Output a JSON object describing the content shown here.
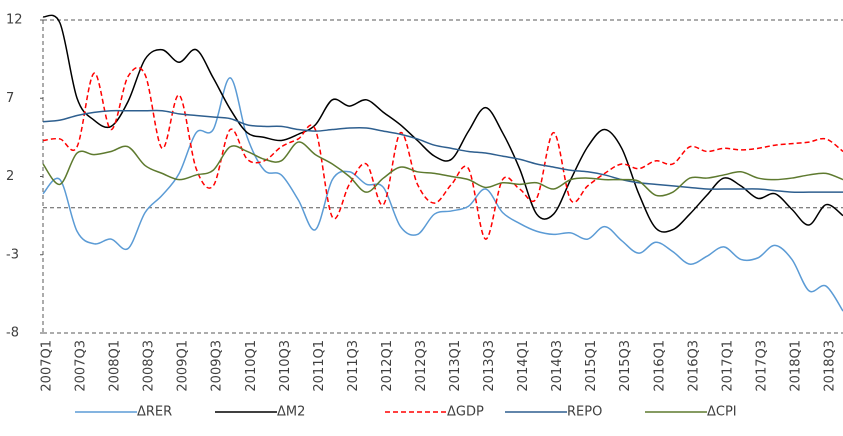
{
  "chart_data": {
    "type": "line",
    "categories": [
      "2007Q1",
      null,
      "2007Q3",
      null,
      "2008Q1",
      null,
      "2008Q3",
      null,
      "2009Q1",
      null,
      "2009Q3",
      null,
      "2010Q1",
      null,
      "2010Q3",
      null,
      "2011Q1",
      null,
      "2011Q3",
      null,
      "2012Q1",
      null,
      "2012Q3",
      null,
      "2013Q1",
      null,
      "2013Q3",
      null,
      "2014Q1",
      null,
      "2014Q3",
      null,
      "2015Q1",
      null,
      "2015Q3",
      null,
      "2016Q1",
      null,
      "2016Q3",
      null,
      "2017Q1",
      null,
      "2017Q3",
      null,
      "2018Q1",
      null,
      "2018Q3",
      null
    ],
    "ylim": [
      -8,
      12
    ],
    "yticks": [
      12,
      7,
      2,
      -3,
      -8
    ],
    "zero_line": true,
    "series": [
      {
        "name": "ΔRER",
        "color": "#5b9bd5",
        "dashed": false,
        "values": [
          0.9,
          1.8,
          -1.5,
          -2.3,
          -2.0,
          -2.6,
          -0.3,
          0.8,
          2.2,
          4.8,
          5.0,
          8.3,
          4.5,
          2.4,
          2.1,
          0.5,
          -1.4,
          1.8,
          2.3,
          1.5,
          1.3,
          -1.2,
          -1.7,
          -0.4,
          -0.2,
          0.1,
          1.2,
          -0.3,
          -1.0,
          -1.5,
          -1.7,
          -1.6,
          -2.0,
          -1.2,
          -2.1,
          -2.9,
          -2.2,
          -2.8,
          -3.6,
          -3.1,
          -2.5,
          -3.3,
          -3.2,
          -2.4,
          -3.3,
          -5.3,
          -5.0,
          -6.6
        ]
      },
      {
        "name": "ΔM2",
        "color": "#000000",
        "dashed": false,
        "values": [
          12.2,
          11.8,
          7.0,
          5.6,
          5.2,
          6.8,
          9.5,
          10.1,
          9.3,
          10.1,
          8.3,
          6.3,
          4.8,
          4.5,
          4.3,
          4.7,
          5.3,
          6.9,
          6.5,
          6.9,
          6.1,
          5.3,
          4.3,
          3.3,
          3.1,
          4.9,
          6.4,
          4.8,
          2.5,
          -0.4,
          -0.4,
          1.8,
          3.9,
          5.0,
          3.8,
          0.9,
          -1.3,
          -1.4,
          -0.4,
          0.8,
          1.9,
          1.4,
          0.6,
          0.9,
          -0.1,
          -1.1,
          0.2,
          -0.5
        ]
      },
      {
        "name": "ΔGDP",
        "color": "#ff0000",
        "dashed": true,
        "values": [
          4.3,
          4.4,
          3.9,
          8.6,
          5.0,
          8.4,
          8.5,
          3.8,
          7.2,
          2.5,
          1.4,
          5.0,
          3.1,
          3.0,
          3.9,
          4.4,
          5.0,
          -0.6,
          1.5,
          2.8,
          0.2,
          4.8,
          1.5,
          0.3,
          1.5,
          2.5,
          -2.0,
          1.8,
          1.2,
          0.6,
          4.8,
          0.5,
          1.4,
          2.2,
          2.8,
          2.5,
          3.0,
          2.8,
          3.9,
          3.6,
          3.8,
          3.7,
          3.8,
          4.0,
          4.1,
          4.2,
          4.4,
          3.6
        ]
      },
      {
        "name": "REPO",
        "color": "#2e5f8f",
        "dashed": false,
        "values": [
          5.5,
          5.6,
          5.9,
          6.1,
          6.2,
          6.2,
          6.2,
          6.2,
          6.0,
          5.9,
          5.8,
          5.7,
          5.3,
          5.2,
          5.2,
          5.0,
          4.9,
          5.0,
          5.1,
          5.1,
          4.9,
          4.7,
          4.4,
          4.0,
          3.8,
          3.6,
          3.5,
          3.3,
          3.1,
          2.8,
          2.6,
          2.4,
          2.3,
          2.1,
          1.8,
          1.6,
          1.5,
          1.4,
          1.3,
          1.2,
          1.2,
          1.2,
          1.2,
          1.1,
          1.0,
          1.0,
          1.0,
          1.0
        ]
      },
      {
        "name": "ΔCPI",
        "color": "#5e7a2f",
        "dashed": false,
        "values": [
          2.8,
          1.5,
          3.5,
          3.4,
          3.6,
          3.9,
          2.7,
          2.2,
          1.8,
          2.1,
          2.4,
          3.9,
          3.6,
          3.1,
          3.0,
          4.2,
          3.4,
          2.8,
          2.0,
          1.0,
          1.9,
          2.6,
          2.3,
          2.2,
          2.0,
          1.8,
          1.3,
          1.6,
          1.5,
          1.6,
          1.2,
          1.8,
          1.9,
          1.8,
          1.8,
          1.7,
          0.8,
          1.0,
          1.9,
          1.9,
          2.1,
          2.3,
          1.9,
          1.8,
          1.9,
          2.1,
          2.2,
          1.8
        ]
      }
    ]
  }
}
